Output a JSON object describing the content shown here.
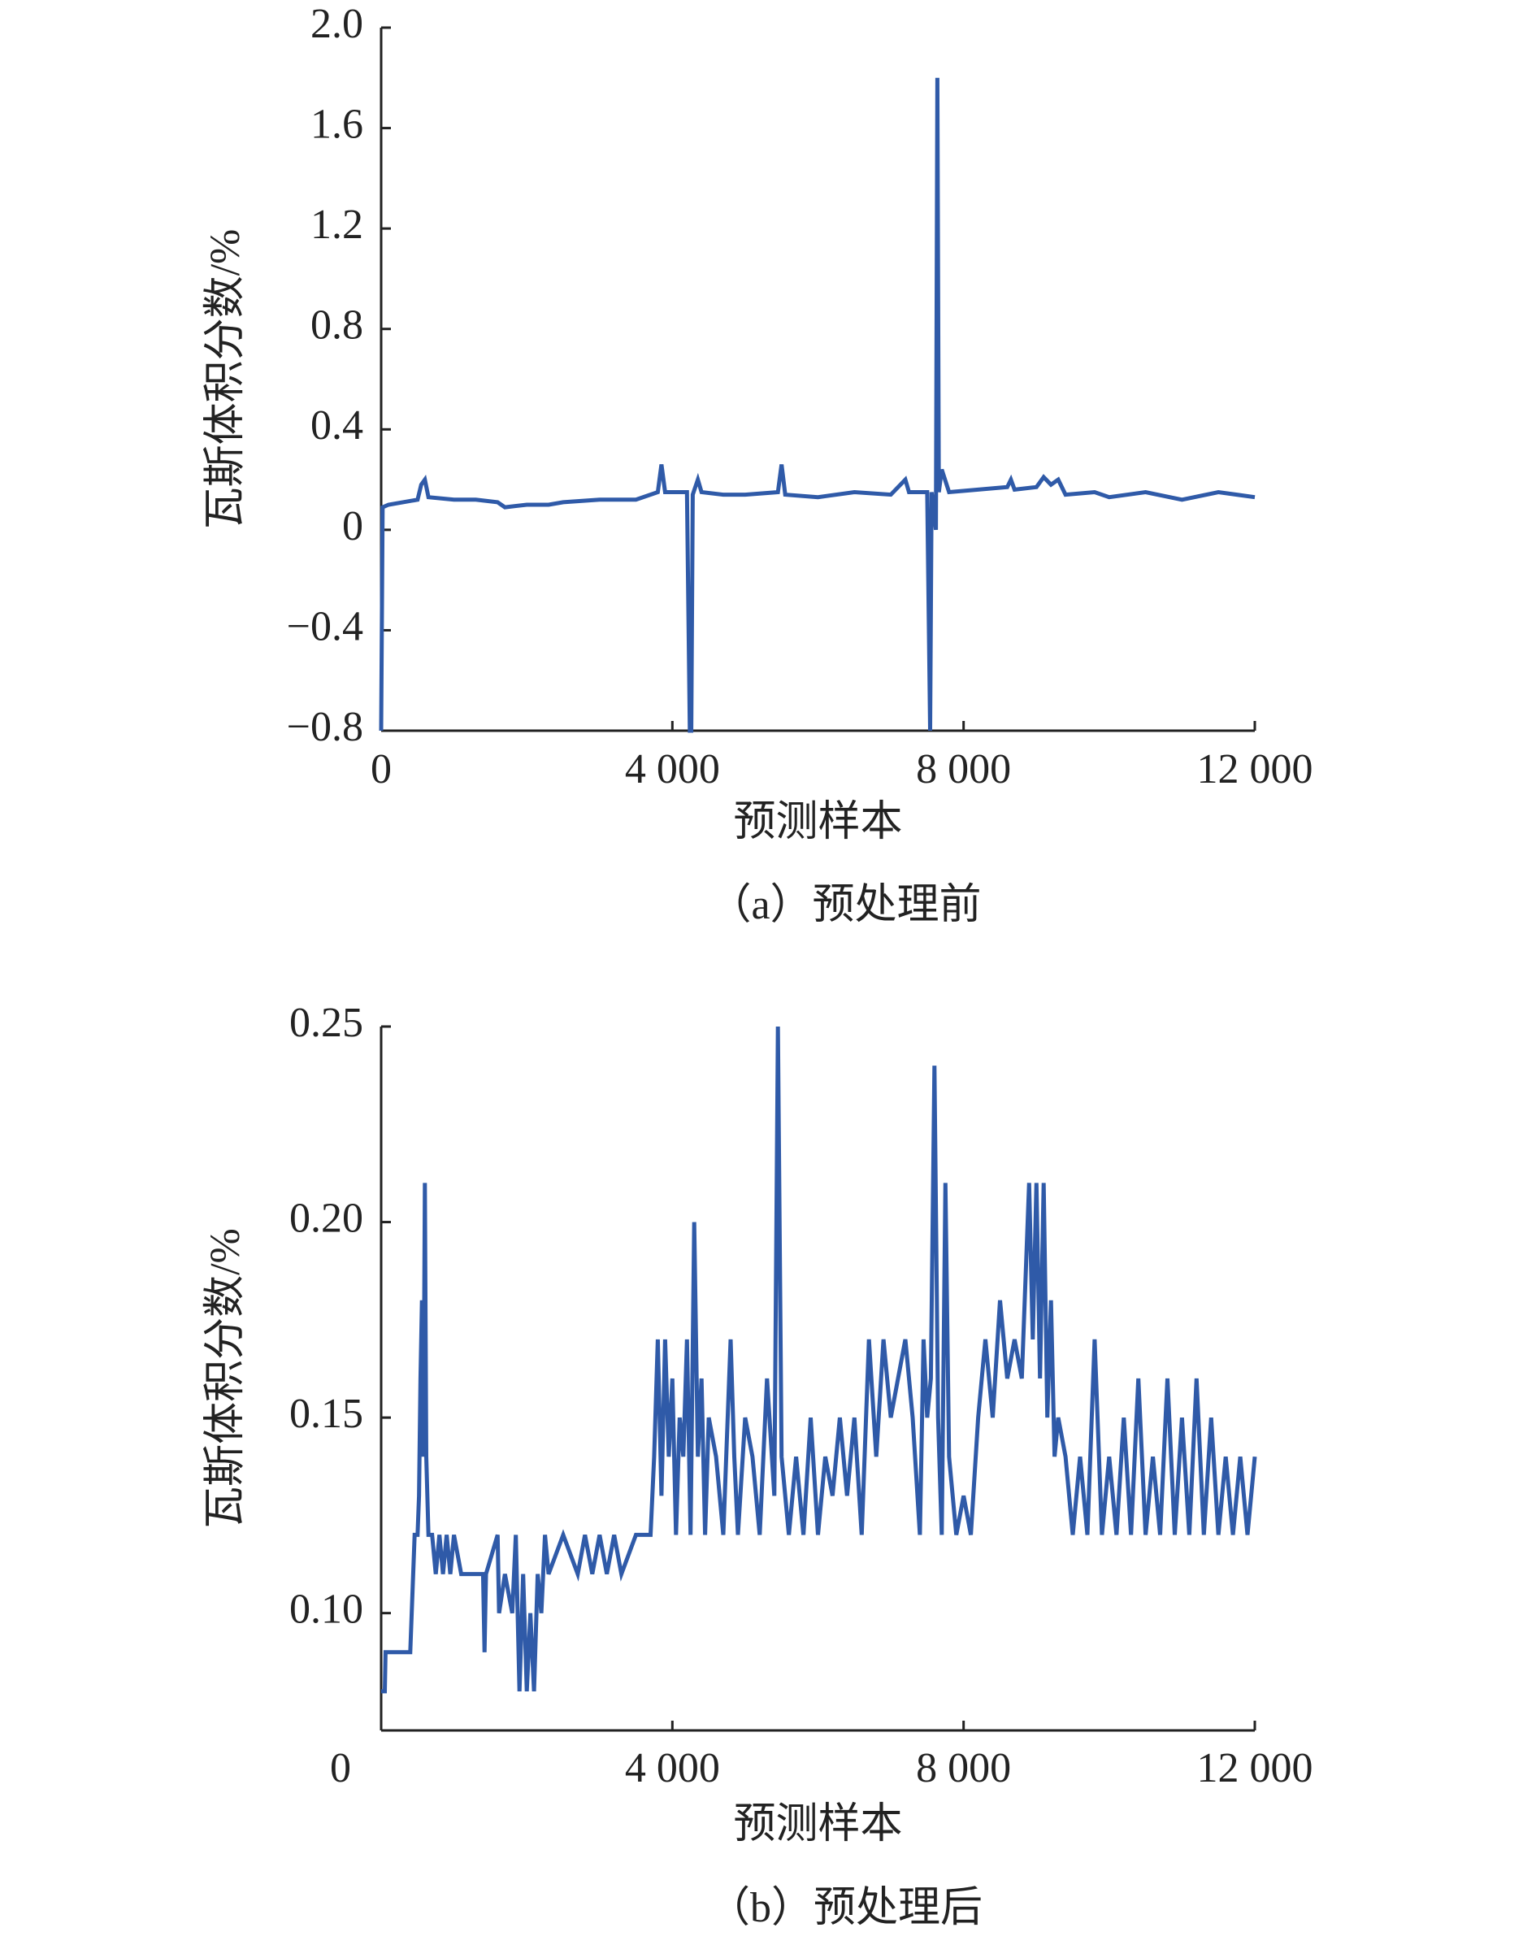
{
  "chart_data": [
    {
      "type": "line",
      "y_label": "瓦斯体积分数/%",
      "x_label": "预测样本",
      "caption": "（a）预处理前",
      "xlim": [
        0,
        12000
      ],
      "ylim": [
        -0.8,
        2.0
      ],
      "xticks": [
        0,
        {
          "value": 4000,
          "label": "4 000"
        },
        {
          "value": 8000,
          "label": "8 000"
        },
        {
          "value": 12000,
          "label": "12 000"
        }
      ],
      "yticks": [
        {
          "value": 2.0,
          "label": "2.0"
        },
        1.6,
        1.2,
        0.8,
        0.4,
        0,
        {
          "value": -0.4,
          "label": "−0.4"
        },
        {
          "value": -0.8,
          "label": "−0.8"
        }
      ],
      "series": [
        {
          "color": "#2f5aa8",
          "x": [
            0,
            20,
            100,
            500,
            550,
            600,
            650,
            1000,
            1300,
            1600,
            1700,
            2000,
            2300,
            2500,
            3000,
            3500,
            3800,
            3850,
            3900,
            4200,
            4240,
            4260,
            4280,
            4350,
            4400,
            4700,
            5000,
            5450,
            5500,
            5550,
            6000,
            6500,
            7000,
            7200,
            7250,
            7500,
            7540,
            7560,
            7620,
            7640,
            7660,
            7700,
            7800,
            8200,
            8600,
            8650,
            8700,
            9000,
            9100,
            9200,
            9300,
            9400,
            9800,
            10000,
            10500,
            11000,
            11500,
            12000
          ],
          "values": [
            -0.8,
            0.09,
            0.1,
            0.12,
            0.18,
            0.2,
            0.13,
            0.12,
            0.12,
            0.11,
            0.09,
            0.1,
            0.1,
            0.11,
            0.12,
            0.12,
            0.15,
            0.26,
            0.15,
            0.15,
            -0.8,
            -0.8,
            0.14,
            0.2,
            0.15,
            0.14,
            0.14,
            0.15,
            0.26,
            0.14,
            0.13,
            0.15,
            0.14,
            0.2,
            0.15,
            0.15,
            -0.8,
            0.15,
            0.0,
            1.8,
            0.15,
            0.24,
            0.15,
            0.16,
            0.17,
            0.2,
            0.16,
            0.17,
            0.21,
            0.18,
            0.2,
            0.14,
            0.15,
            0.13,
            0.15,
            0.12,
            0.15,
            0.13
          ]
        }
      ]
    },
    {
      "type": "line",
      "y_label": "瓦斯体积分数/%",
      "x_label": "预测样本",
      "caption": "（b）预处理后",
      "xlim": [
        0,
        12000
      ],
      "ylim": [
        0.07,
        0.25
      ],
      "xticks": [
        0,
        {
          "value": 4000,
          "label": "4 000"
        },
        {
          "value": 8000,
          "label": "8 000"
        },
        {
          "value": 12000,
          "label": "12 000"
        }
      ],
      "yticks": [
        0.25,
        {
          "value": 0.2,
          "label": "0.20"
        },
        0.15,
        {
          "value": 0.1,
          "label": "0.10"
        }
      ],
      "series": [
        {
          "color": "#2f5aa8",
          "x": [
            0,
            50,
            60,
            400,
            420,
            440,
            460,
            500,
            520,
            540,
            560,
            580,
            600,
            620,
            650,
            700,
            750,
            800,
            850,
            900,
            950,
            1000,
            1100,
            1400,
            1420,
            1440,
            1600,
            1620,
            1700,
            1800,
            1850,
            1900,
            1950,
            2000,
            2050,
            2100,
            2150,
            2200,
            2250,
            2300,
            2500,
            2700,
            2800,
            2900,
            3000,
            3100,
            3200,
            3300,
            3500,
            3700,
            3750,
            3800,
            3850,
            3900,
            3950,
            4000,
            4050,
            4100,
            4150,
            4200,
            4250,
            4300,
            4350,
            4400,
            4450,
            4500,
            4600,
            4700,
            4800,
            4850,
            4900,
            5000,
            5100,
            5200,
            5300,
            5400,
            5450,
            5500,
            5600,
            5700,
            5800,
            5900,
            6000,
            6100,
            6200,
            6300,
            6400,
            6500,
            6600,
            6700,
            6800,
            6900,
            7000,
            7100,
            7200,
            7300,
            7400,
            7450,
            7500,
            7550,
            7600,
            7650,
            7700,
            7750,
            7800,
            7900,
            8000,
            8100,
            8200,
            8300,
            8400,
            8500,
            8600,
            8700,
            8800,
            8900,
            8950,
            9000,
            9050,
            9100,
            9150,
            9200,
            9250,
            9300,
            9400,
            9500,
            9600,
            9700,
            9800,
            9900,
            10000,
            10100,
            10200,
            10300,
            10400,
            10500,
            10600,
            10700,
            10800,
            10900,
            11000,
            11100,
            11200,
            11300,
            11400,
            11500,
            11600,
            11700,
            11800,
            11900,
            12000
          ],
          "values": [
            0.08,
            0.08,
            0.09,
            0.09,
            0.1,
            0.11,
            0.12,
            0.12,
            0.13,
            0.16,
            0.18,
            0.14,
            0.21,
            0.14,
            0.12,
            0.12,
            0.11,
            0.12,
            0.11,
            0.12,
            0.11,
            0.12,
            0.11,
            0.11,
            0.09,
            0.11,
            0.12,
            0.1,
            0.11,
            0.1,
            0.12,
            0.08,
            0.11,
            0.08,
            0.1,
            0.08,
            0.11,
            0.1,
            0.12,
            0.11,
            0.12,
            0.11,
            0.12,
            0.11,
            0.12,
            0.11,
            0.12,
            0.11,
            0.12,
            0.12,
            0.14,
            0.17,
            0.13,
            0.17,
            0.14,
            0.16,
            0.12,
            0.15,
            0.14,
            0.17,
            0.12,
            0.2,
            0.14,
            0.16,
            0.12,
            0.15,
            0.14,
            0.12,
            0.17,
            0.14,
            0.12,
            0.15,
            0.14,
            0.12,
            0.16,
            0.13,
            0.25,
            0.14,
            0.12,
            0.14,
            0.12,
            0.15,
            0.12,
            0.14,
            0.13,
            0.15,
            0.13,
            0.15,
            0.12,
            0.17,
            0.14,
            0.17,
            0.15,
            0.16,
            0.17,
            0.15,
            0.12,
            0.17,
            0.15,
            0.16,
            0.24,
            0.15,
            0.12,
            0.21,
            0.14,
            0.12,
            0.13,
            0.12,
            0.15,
            0.17,
            0.15,
            0.18,
            0.16,
            0.17,
            0.16,
            0.21,
            0.17,
            0.21,
            0.16,
            0.21,
            0.15,
            0.18,
            0.14,
            0.15,
            0.14,
            0.12,
            0.14,
            0.12,
            0.17,
            0.12,
            0.14,
            0.12,
            0.15,
            0.12,
            0.16,
            0.12,
            0.14,
            0.12,
            0.16,
            0.12,
            0.15,
            0.12,
            0.16,
            0.12,
            0.15,
            0.12,
            0.14,
            0.12,
            0.14,
            0.12,
            0.14
          ]
        }
      ]
    }
  ]
}
